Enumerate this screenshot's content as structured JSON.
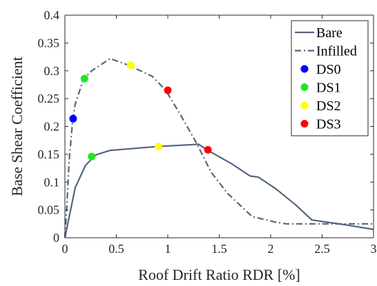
{
  "chart_data": {
    "type": "line",
    "xlabel": "Roof Drift Ratio RDR [%]",
    "ylabel": "Base Shear Coefficient",
    "xlim": [
      0,
      3
    ],
    "ylim": [
      0,
      0.4
    ],
    "xticks": [
      0,
      0.5,
      1,
      1.5,
      2,
      2.5,
      3
    ],
    "xtick_labels": [
      "0",
      "0.5",
      "1",
      "1.5",
      "2",
      "2.5",
      "3"
    ],
    "yticks": [
      0,
      0.05,
      0.1,
      0.15,
      0.2,
      0.25,
      0.3,
      0.35,
      0.4
    ],
    "ytick_labels": [
      "0",
      "0.05",
      "0.1",
      "0.15",
      "0.2",
      "0.25",
      "0.3",
      "0.35",
      "0.4"
    ],
    "grid": false,
    "legend_position": "top-right",
    "series": [
      {
        "name": "Bare",
        "style": "solid",
        "color": "#53647f",
        "x": [
          0,
          0.1,
          0.2,
          0.3,
          0.44,
          0.9,
          1.3,
          1.38,
          1.62,
          1.8,
          1.88,
          2.05,
          2.25,
          2.4,
          2.7,
          3.0
        ],
        "y": [
          0,
          0.09,
          0.13,
          0.149,
          0.157,
          0.164,
          0.168,
          0.158,
          0.133,
          0.111,
          0.109,
          0.088,
          0.058,
          0.032,
          0.024,
          0.015
        ]
      },
      {
        "name": "Infilled",
        "style": "dashdot",
        "color": "#53647f",
        "x": [
          0,
          0.02,
          0.04,
          0.075,
          0.1,
          0.18,
          0.26,
          0.44,
          0.62,
          0.85,
          0.98,
          1.12,
          1.28,
          1.42,
          1.58,
          1.82,
          2.05,
          2.15,
          2.5,
          3.0
        ],
        "y": [
          0,
          0.06,
          0.135,
          0.21,
          0.24,
          0.285,
          0.3,
          0.322,
          0.31,
          0.29,
          0.265,
          0.222,
          0.17,
          0.118,
          0.08,
          0.038,
          0.028,
          0.025,
          0.025,
          0.025
        ]
      }
    ],
    "damage_states": [
      {
        "name": "DS0",
        "color": "#0000ff",
        "points": [
          {
            "x": 0.08,
            "y": 0.214
          }
        ]
      },
      {
        "name": "DS1",
        "color": "#22e622",
        "points": [
          {
            "x": 0.19,
            "y": 0.286
          },
          {
            "x": 0.26,
            "y": 0.146
          }
        ]
      },
      {
        "name": "DS2",
        "color": "#ffff00",
        "points": [
          {
            "x": 0.64,
            "y": 0.31
          },
          {
            "x": 0.91,
            "y": 0.164
          }
        ]
      },
      {
        "name": "DS3",
        "color": "#ff0000",
        "points": [
          {
            "x": 1.0,
            "y": 0.265
          },
          {
            "x": 1.39,
            "y": 0.158
          }
        ]
      }
    ]
  }
}
